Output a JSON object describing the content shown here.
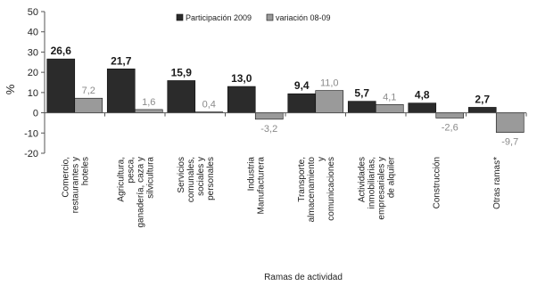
{
  "chart_data": {
    "type": "bar",
    "title": "",
    "ylabel": "%",
    "xlabel": "Ramas de actividad",
    "ylim": [
      -20,
      50
    ],
    "yticks": [
      -20,
      -10,
      0,
      10,
      20,
      30,
      40,
      50
    ],
    "grid": false,
    "legend_placement": "top",
    "categories": [
      [
        "Comercio,",
        "restaurantes y",
        "hoteles"
      ],
      [
        "Agricultura,",
        "pesca,",
        "ganadería, caza y",
        "silvicultura"
      ],
      [
        "Servicios",
        "comunales,",
        "sociales y",
        "personales"
      ],
      [
        "Industria",
        "Manufacturera"
      ],
      [
        "Transporte,",
        "almacenamiento",
        "y",
        "comunicaciones"
      ],
      [
        "Actividades",
        "inmobiliarias,",
        "empresariales y",
        "de alquiler"
      ],
      [
        "Construcción"
      ],
      [
        "Otras ramas*"
      ]
    ],
    "series": [
      {
        "name": "Participación 2009",
        "color": "#2b2b2b",
        "label_color": "#1a1a1a",
        "values": [
          26.6,
          21.7,
          15.9,
          13.0,
          9.4,
          5.7,
          4.8,
          2.7
        ],
        "labels": [
          "26,6",
          "21,7",
          "15,9",
          "13,0",
          "9,4",
          "5,7",
          "4,8",
          "2,7"
        ]
      },
      {
        "name": "variación 08-09",
        "color": "#9a9a9a",
        "label_color": "#8a8a8a",
        "values": [
          7.2,
          1.6,
          0.4,
          -3.2,
          11.0,
          4.1,
          -2.6,
          -9.7
        ],
        "labels": [
          "7,2",
          "1,6",
          "0,4",
          "-3,2",
          "11,0",
          "4,1",
          "-2,6",
          "-9,7"
        ]
      }
    ]
  }
}
